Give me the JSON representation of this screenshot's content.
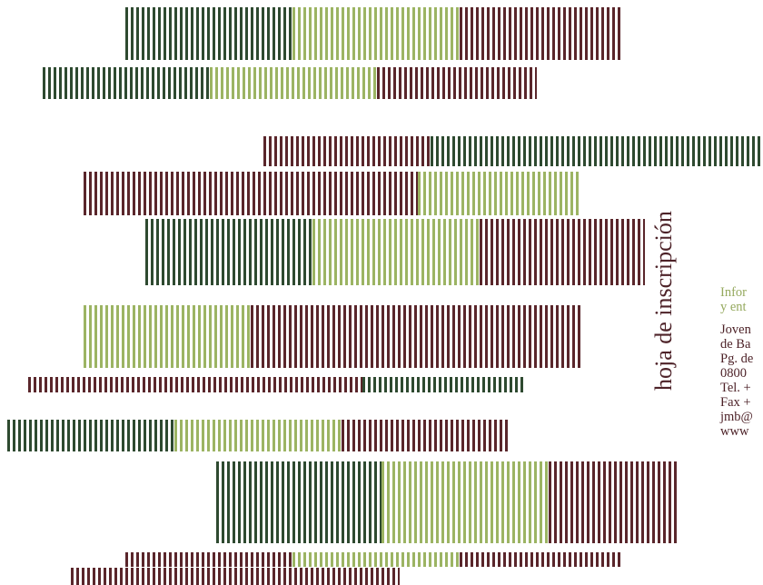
{
  "colors": {
    "dark_green": "#2e4a30",
    "light_green": "#9cb463",
    "maroon": "#5a262b"
  },
  "vertical_title": "hoja de inscripción",
  "info": {
    "header_lines": [
      "Infor",
      "y ent"
    ],
    "address_lines": [
      "Joven",
      "de Ba",
      "Pg. de",
      "0800",
      "Tel. +",
      "Fax +",
      "jmb@",
      "www"
    ]
  },
  "stripe_rows": [
    {
      "id": "row-1",
      "segments": [
        "dark_green",
        "light_green",
        "maroon"
      ]
    },
    {
      "id": "row-2",
      "segments": [
        "dark_green",
        "light_green",
        "maroon"
      ]
    },
    {
      "id": "row-3",
      "segments": [
        "maroon",
        "dark_green"
      ]
    },
    {
      "id": "row-4",
      "segments": [
        "maroon",
        "light_green"
      ]
    },
    {
      "id": "row-5",
      "segments": [
        "dark_green",
        "light_green",
        "maroon"
      ]
    },
    {
      "id": "row-6",
      "segments": [
        "light_green",
        "maroon"
      ]
    },
    {
      "id": "row-7",
      "segments": [
        "maroon",
        "dark_green"
      ]
    },
    {
      "id": "row-8",
      "segments": [
        "dark_green",
        "light_green",
        "maroon"
      ]
    },
    {
      "id": "row-9",
      "segments": [
        "dark_green",
        "light_green",
        "maroon"
      ]
    },
    {
      "id": "row-10",
      "segments": [
        "maroon",
        "light_green",
        "maroon"
      ]
    },
    {
      "id": "row-11",
      "segments": [
        "maroon"
      ]
    }
  ]
}
